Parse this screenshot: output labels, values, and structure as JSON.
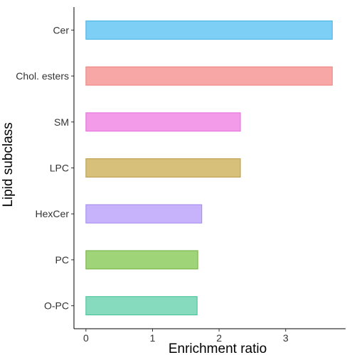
{
  "chart_data": {
    "type": "bar",
    "orientation": "horizontal",
    "xlabel": "Enrichment ratio",
    "ylabel": "Lipid subclass",
    "xlim": [
      -0.18,
      3.9
    ],
    "xticks": [
      0,
      1,
      2,
      3
    ],
    "grid": false,
    "legend": "none",
    "categories": [
      "Cer",
      "Chol. esters",
      "SM",
      "LPC",
      "HexCer",
      "PC",
      "O-PC"
    ],
    "values": [
      3.7,
      3.7,
      2.32,
      2.32,
      1.74,
      1.68,
      1.67
    ],
    "fill_colors": [
      "#7ecff5",
      "#f7a8a6",
      "#f39ae8",
      "#d6c07a",
      "#c6b3fb",
      "#a0d479",
      "#86dbbf"
    ],
    "stroke_colors": [
      "#3fb1e3",
      "#ef7f7b",
      "#e56bd8",
      "#b89a45",
      "#a585f2",
      "#6fb03e",
      "#3fbf98"
    ]
  }
}
